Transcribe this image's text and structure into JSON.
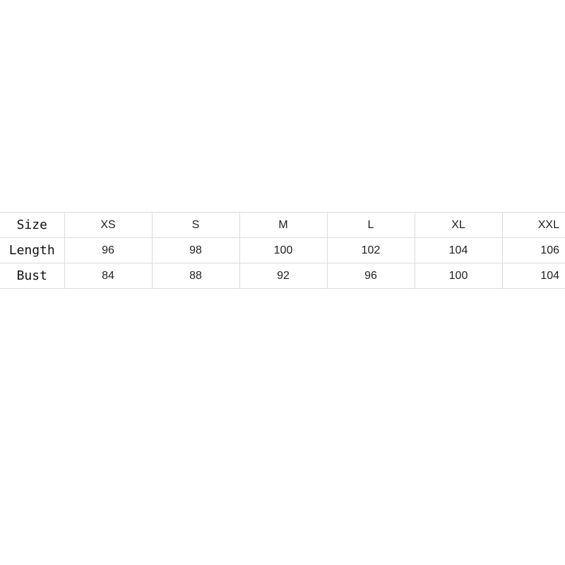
{
  "table": {
    "header": {
      "label": "Size",
      "values": [
        "XS",
        "S",
        "M",
        "L",
        "XL",
        "XXL"
      ]
    },
    "rows": [
      {
        "label": "Length",
        "values": [
          "96",
          "98",
          "100",
          "102",
          "104",
          "106"
        ]
      },
      {
        "label": "Bust",
        "values": [
          "84",
          "88",
          "92",
          "96",
          "100",
          "104"
        ]
      }
    ]
  }
}
